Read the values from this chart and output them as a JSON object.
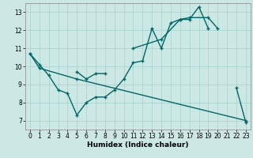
{
  "xlabel": "Humidex (Indice chaleur)",
  "bg_color": "#cce8e4",
  "grid_color": "#aad4d0",
  "line_color": "#006666",
  "line1_x": [
    0,
    1,
    2,
    3,
    4,
    5,
    6,
    7,
    8,
    9,
    10,
    11,
    12,
    13,
    14,
    15,
    16,
    17,
    18,
    19,
    22,
    23
  ],
  "line1_y": [
    10.7,
    10.1,
    9.5,
    8.7,
    8.5,
    7.3,
    8.0,
    8.3,
    8.3,
    8.7,
    9.3,
    10.2,
    10.3,
    12.1,
    11.0,
    12.4,
    12.6,
    12.6,
    13.3,
    12.1,
    8.8,
    6.9
  ],
  "line2_x": [
    5,
    6,
    7,
    8,
    11,
    14,
    16,
    17,
    19,
    20
  ],
  "line2_y": [
    9.7,
    9.3,
    9.6,
    9.6,
    11.0,
    11.5,
    12.6,
    12.7,
    12.7,
    12.1
  ],
  "line3_x": [
    0,
    1,
    5,
    23
  ],
  "line3_y": [
    10.7,
    9.9,
    9.3,
    7.0
  ],
  "xlim": [
    -0.5,
    23.5
  ],
  "ylim": [
    6.5,
    13.5
  ],
  "yticks": [
    7,
    8,
    9,
    10,
    11,
    12,
    13
  ],
  "xticks": [
    0,
    1,
    2,
    3,
    4,
    5,
    6,
    7,
    8,
    9,
    10,
    11,
    12,
    13,
    14,
    15,
    16,
    17,
    18,
    19,
    20,
    21,
    22,
    23
  ]
}
